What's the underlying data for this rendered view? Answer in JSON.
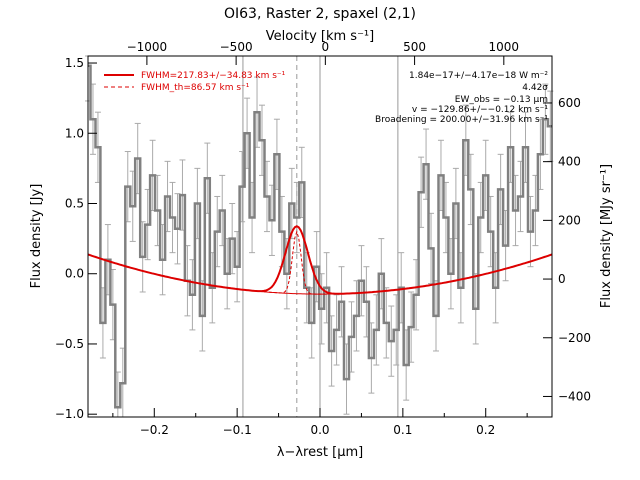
{
  "chart_data": {
    "type": "line",
    "title": "OI63, Raster 2, spaxel (2,1)",
    "xlabel": "λ−λrest [μm]",
    "ylabel": "Flux density [Jy]",
    "ylabel_right": "Flux density [MJy sr⁻¹]",
    "xlabel_top": "Velocity [km s⁻¹]",
    "xlim": [
      -0.28,
      0.28
    ],
    "ylim": [
      -1.02,
      1.55
    ],
    "top_lim": [
      -1330,
      1270
    ],
    "right_lim": [
      -470,
      760
    ],
    "x_ticks": [
      {
        "v": -0.2,
        "label": "−0.2"
      },
      {
        "v": -0.1,
        "label": "−0.1"
      },
      {
        "v": 0.0,
        "label": "0.0"
      },
      {
        "v": 0.1,
        "label": "0.1"
      },
      {
        "v": 0.2,
        "label": "0.2"
      }
    ],
    "y_ticks": [
      {
        "v": -1.0,
        "label": "−1.0"
      },
      {
        "v": -0.5,
        "label": "−0.5"
      },
      {
        "v": 0.0,
        "label": "0.0"
      },
      {
        "v": 0.5,
        "label": "0.5"
      },
      {
        "v": 1.0,
        "label": "1.0"
      },
      {
        "v": 1.5,
        "label": "1.5"
      }
    ],
    "top_ticks": [
      {
        "v": -1000,
        "label": "−1000"
      },
      {
        "v": -500,
        "label": "−500"
      },
      {
        "v": 0,
        "label": "0"
      },
      {
        "v": 500,
        "label": "500"
      },
      {
        "v": 1000,
        "label": "1000"
      }
    ],
    "right_ticks": [
      {
        "v": -400,
        "label": "−400"
      },
      {
        "v": -200,
        "label": "−200"
      },
      {
        "v": 0,
        "label": "0"
      },
      {
        "v": 200,
        "label": "200"
      },
      {
        "v": 400,
        "label": "400"
      },
      {
        "v": 600,
        "label": "600"
      }
    ],
    "vlines_gray": [
      -0.093,
      0.0,
      0.094
    ],
    "vline_dashed": -0.028,
    "spectrum": {
      "x": [
        -0.28,
        -0.274,
        -0.268,
        -0.262,
        -0.256,
        -0.25,
        -0.244,
        -0.238,
        -0.232,
        -0.226,
        -0.22,
        -0.214,
        -0.208,
        -0.202,
        -0.196,
        -0.19,
        -0.184,
        -0.178,
        -0.172,
        -0.166,
        -0.16,
        -0.154,
        -0.148,
        -0.142,
        -0.136,
        -0.13,
        -0.124,
        -0.118,
        -0.112,
        -0.106,
        -0.1,
        -0.094,
        -0.088,
        -0.082,
        -0.076,
        -0.07,
        -0.064,
        -0.058,
        -0.052,
        -0.046,
        -0.04,
        -0.034,
        -0.028,
        -0.022,
        -0.016,
        -0.01,
        -0.004,
        0.002,
        0.008,
        0.014,
        0.02,
        0.026,
        0.032,
        0.038,
        0.044,
        0.05,
        0.056,
        0.062,
        0.068,
        0.074,
        0.08,
        0.086,
        0.092,
        0.098,
        0.104,
        0.11,
        0.116,
        0.122,
        0.128,
        0.134,
        0.14,
        0.146,
        0.152,
        0.158,
        0.164,
        0.17,
        0.176,
        0.182,
        0.188,
        0.194,
        0.2,
        0.206,
        0.212,
        0.218,
        0.224,
        0.23,
        0.236,
        0.242,
        0.248,
        0.254,
        0.26,
        0.266,
        0.272,
        0.278
      ],
      "y": [
        1.48,
        1.1,
        0.9,
        -0.35,
        0.1,
        -0.22,
        -0.95,
        -0.78,
        0.62,
        0.48,
        0.82,
        0.12,
        0.35,
        0.7,
        0.45,
        0.1,
        0.55,
        0.4,
        0.32,
        0.56,
        -0.05,
        -0.15,
        0.5,
        -0.3,
        0.68,
        -0.1,
        0.3,
        0.45,
        0.0,
        0.25,
        0.05,
        0.62,
        1.0,
        0.4,
        1.15,
        0.95,
        0.55,
        0.38,
        0.85,
        0.3,
        0.0,
        0.5,
        0.4,
        0.65,
        -0.1,
        -0.35,
        0.05,
        -0.25,
        -0.1,
        -0.55,
        -0.4,
        -0.2,
        -0.75,
        -0.45,
        -0.3,
        -0.05,
        -0.2,
        -0.6,
        -0.4,
        0.0,
        -0.35,
        -0.48,
        -0.4,
        -0.1,
        -0.65,
        -0.38,
        -0.15,
        0.58,
        0.78,
        0.18,
        -0.3,
        0.7,
        0.4,
        0.0,
        0.5,
        -0.1,
        0.95,
        0.6,
        -0.25,
        0.4,
        0.7,
        0.3,
        -0.1,
        0.6,
        0.2,
        0.9,
        0.45,
        0.55,
        0.9,
        0.3,
        0.45,
        0.85,
        1.1,
        1.05
      ],
      "err": 0.25
    },
    "fit": {
      "baseline_min": -0.145,
      "baseline_center": 0.0,
      "baseline_curv": 3.6,
      "peak": 0.48,
      "center": -0.028,
      "sigma": 0.0135
    },
    "fit_theory": {
      "peak": 0.44,
      "center": -0.028,
      "sigma": 0.0052
    },
    "legend": [
      {
        "label": "FWHM=217.83+/−34.83 km s⁻¹",
        "style": "solid"
      },
      {
        "label": "FWHM_th=86.57 km s⁻¹",
        "style": "dashed"
      }
    ],
    "annotations": [
      "1.84e−17+/−4.17e−18 W m⁻²",
      "4.42σ",
      "EW_obs = −0.13 μm",
      "v = −129.86+/−−0.12 km s⁻¹",
      "Broadening = 200.00+/−31.96 km s⁻¹"
    ],
    "colors": {
      "fit": "#dd0000",
      "spectrum": "#808080",
      "error": "#aaaaaa",
      "axes": "#000000"
    }
  }
}
